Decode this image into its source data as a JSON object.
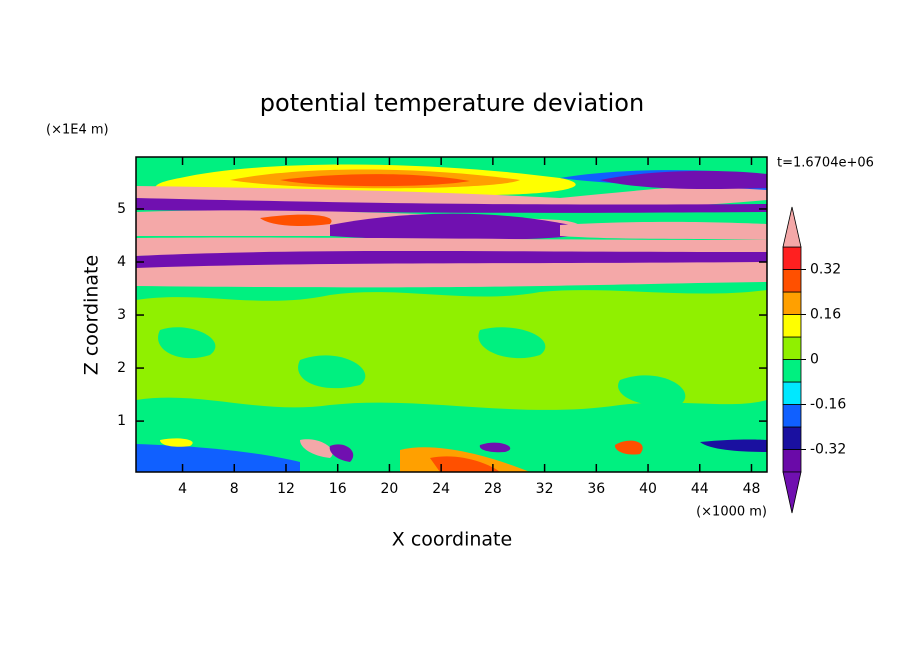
{
  "chart_data": {
    "type": "contour",
    "title": "potential temperature deviation",
    "x_label": "X coordinate",
    "y_label": "Z coordinate",
    "x_unit": "(×1000 m)",
    "y_unit": "(×1E4 m)",
    "annotation": "t=1.6704e+06",
    "xlim": [
      0.4,
      49.2
    ],
    "xticks": [
      4,
      8,
      12,
      16,
      20,
      24,
      28,
      32,
      36,
      40,
      44,
      48
    ],
    "ylim": [
      0.04,
      5.98
    ],
    "yticks": [
      1,
      2,
      3,
      4,
      5
    ],
    "colorbar": {
      "levels": [
        -0.4,
        -0.32,
        -0.24,
        -0.16,
        -0.08,
        0,
        0.08,
        0.16,
        0.24,
        0.32,
        0.4
      ],
      "colors": [
        "#6a0aa8",
        "#1a10a0",
        "#1060ff",
        "#00e8ff",
        "#00f080",
        "#90f000",
        "#ffff00",
        "#ffa000",
        "#ff5000",
        "#ff2020"
      ],
      "under_color": "#7010b0",
      "over_color": "#f4a8a8",
      "ticks": [
        -0.32,
        -0.16,
        0,
        0.16,
        0.32
      ]
    }
  }
}
